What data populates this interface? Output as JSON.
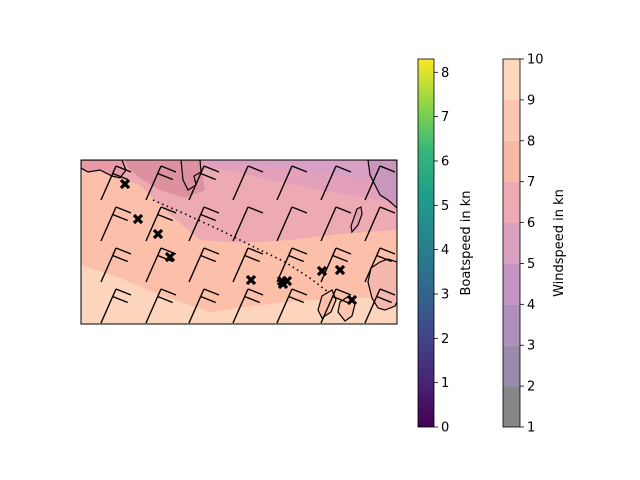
{
  "map": {
    "route_markers": 11,
    "route_style": "dotted"
  },
  "colorbars": {
    "boatspeed": {
      "label": "Boatspeed in kn",
      "ticks": [
        "0",
        "1",
        "2",
        "3",
        "4",
        "5",
        "6",
        "7",
        "8"
      ],
      "range": [
        0,
        8.3
      ],
      "colormap": "viridis"
    },
    "windspeed": {
      "label": "Windspeed in kn",
      "ticks": [
        "1",
        "2",
        "3",
        "4",
        "5",
        "6",
        "7",
        "8",
        "9",
        "10"
      ],
      "range": [
        1,
        10
      ],
      "band_colors": [
        "#86868b",
        "#9a8bab",
        "#ae8fbd",
        "#c595c3",
        "#daa0c0",
        "#eeaab2",
        "#f8b8a8",
        "#fcc6b0",
        "#fdd8bd",
        "#feeedc"
      ]
    }
  },
  "colors": {
    "frame": "#000000",
    "route": "#000000",
    "land_outline": "#000000"
  }
}
